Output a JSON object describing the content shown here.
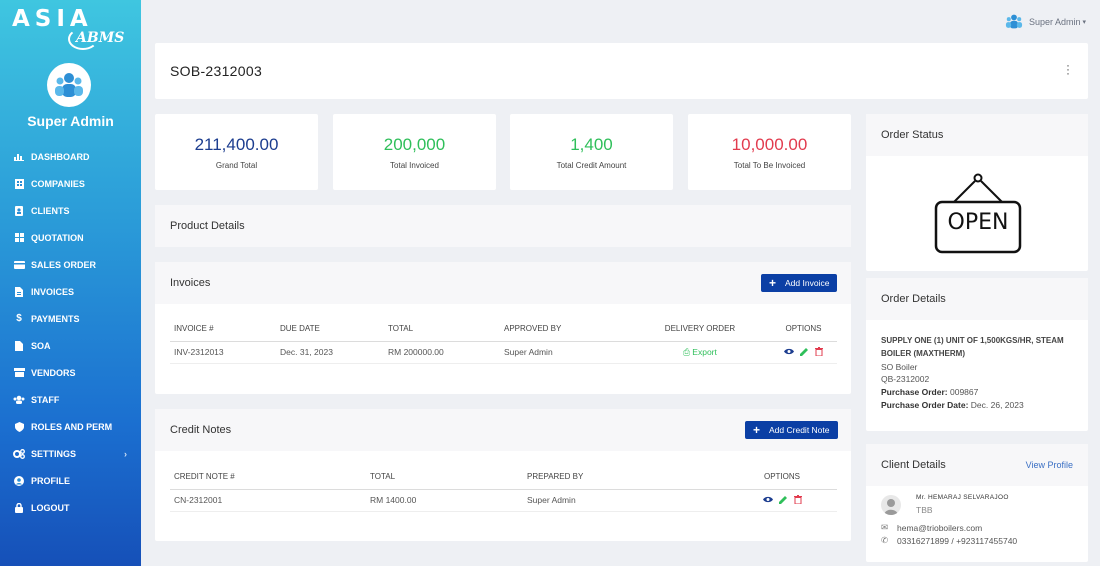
{
  "brand": {
    "asia": "ASIA",
    "abms": "ABMS"
  },
  "sidebar": {
    "user": "Super Admin",
    "items": [
      {
        "label": "DASHBOARD",
        "icon": "chart-icon"
      },
      {
        "label": "COMPANIES",
        "icon": "building-icon"
      },
      {
        "label": "CLIENTS",
        "icon": "address-book-icon"
      },
      {
        "label": "QUOTATION",
        "icon": "grid-icon"
      },
      {
        "label": "SALES ORDER",
        "icon": "card-icon"
      },
      {
        "label": "INVOICES",
        "icon": "file-icon"
      },
      {
        "label": "PAYMENTS",
        "icon": "dollar-icon"
      },
      {
        "label": "SOA",
        "icon": "document-icon"
      },
      {
        "label": "VENDORS",
        "icon": "box-icon"
      },
      {
        "label": "STAFF",
        "icon": "users-icon"
      },
      {
        "label": "ROLES AND PERM",
        "icon": "shield-icon"
      },
      {
        "label": "SETTINGS",
        "icon": "cogs-icon"
      },
      {
        "label": "PROFILE",
        "icon": "user-icon"
      },
      {
        "label": "LOGOUT",
        "icon": "lock-icon"
      }
    ]
  },
  "topbar": {
    "user": "Super Admin"
  },
  "page": {
    "title": "SOB-2312003"
  },
  "stats": [
    {
      "value": "211,400.00",
      "label": "Grand Total",
      "color": "#1c3d8f"
    },
    {
      "value": "200,000",
      "label": "Total Invoiced",
      "color": "#2fbf5a"
    },
    {
      "value": "1,400",
      "label": "Total Credit Amount",
      "color": "#2fbf5a"
    },
    {
      "value": "10,000.00",
      "label": "Total To Be Invoiced",
      "color": "#e23b4e"
    }
  ],
  "product_details": {
    "title": "Product Details"
  },
  "invoices": {
    "title": "Invoices",
    "add_label": "Add Invoice",
    "headers": [
      "INVOICE #",
      "DUE DATE",
      "TOTAL",
      "APPROVED BY",
      "DELIVERY ORDER",
      "OPTIONS"
    ],
    "rows": [
      {
        "number": "INV-2312013",
        "due": "Dec. 31, 2023",
        "total": "RM 200000.00",
        "approved": "Super Admin",
        "export": "Export"
      }
    ]
  },
  "credit_notes": {
    "title": "Credit Notes",
    "add_label": "Add Credit Note",
    "headers": [
      "CREDIT NOTE #",
      "TOTAL",
      "PREPARED BY",
      "OPTIONS"
    ],
    "rows": [
      {
        "number": "CN-2312001",
        "total": "RM 1400.00",
        "prepared": "Super Admin"
      }
    ]
  },
  "order_status": {
    "title": "Order Status",
    "sign": "OPEN"
  },
  "order_details": {
    "title": "Order Details",
    "description": "SUPPLY ONE (1) UNIT OF 1,500KGS/HR, STEAM BOILER (MAXTHERM)",
    "product": "SO Boiler",
    "quote": "QB-2312002",
    "po_label": "Purchase Order:",
    "po_value": "009867",
    "po_date_label": "Purchase Order Date:",
    "po_date_value": "Dec. 26, 2023"
  },
  "client_details": {
    "title": "Client Details",
    "view_profile": "View Profile",
    "name": "Mr. HEMARAJ SELVARAJOO",
    "company": "TBB",
    "email": "hema@trioboilers.com",
    "phone": "03316271899 / +923117455740"
  },
  "colors": {
    "primary": "#0b3fa5",
    "success": "#2fbf5a",
    "danger": "#e23b4e"
  }
}
